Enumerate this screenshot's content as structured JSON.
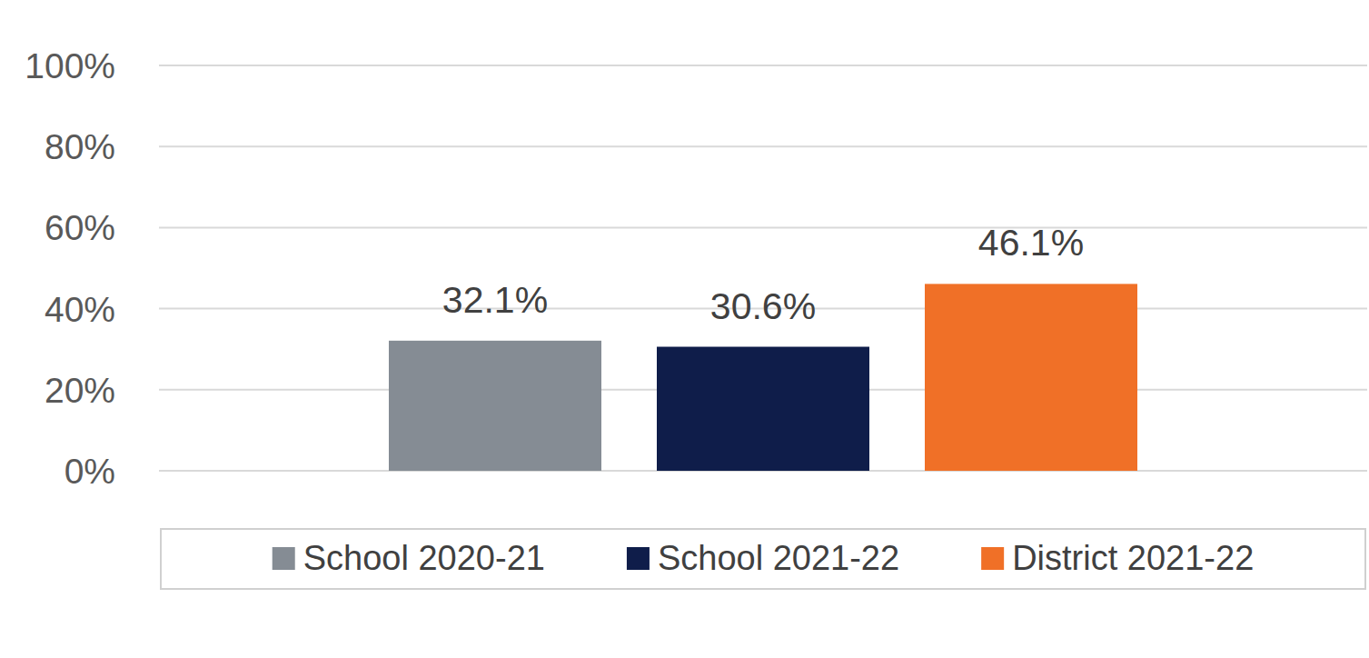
{
  "chart_data": {
    "type": "bar",
    "categories": [
      null
    ],
    "series": [
      {
        "name": "School 2020-21",
        "color": "#858c94",
        "values": [
          32.1
        ],
        "value_labels": [
          "32.1%"
        ]
      },
      {
        "name": "School 2021-22",
        "color": "#0f1d4a",
        "values": [
          30.6
        ],
        "value_labels": [
          "30.6%"
        ]
      },
      {
        "name": "District 2021-22",
        "color": "#f07027",
        "values": [
          46.1
        ],
        "value_labels": [
          "46.1%"
        ]
      }
    ],
    "ylim": [
      0,
      100
    ],
    "yticks": [
      {
        "value": 0,
        "label": "0%"
      },
      {
        "value": 20,
        "label": "20%"
      },
      {
        "value": 40,
        "label": "40%"
      },
      {
        "value": 60,
        "label": "60%"
      },
      {
        "value": 80,
        "label": "80%"
      },
      {
        "value": 100,
        "label": "100%"
      }
    ],
    "grid": true,
    "legend": "bottom",
    "data_labels": true
  }
}
